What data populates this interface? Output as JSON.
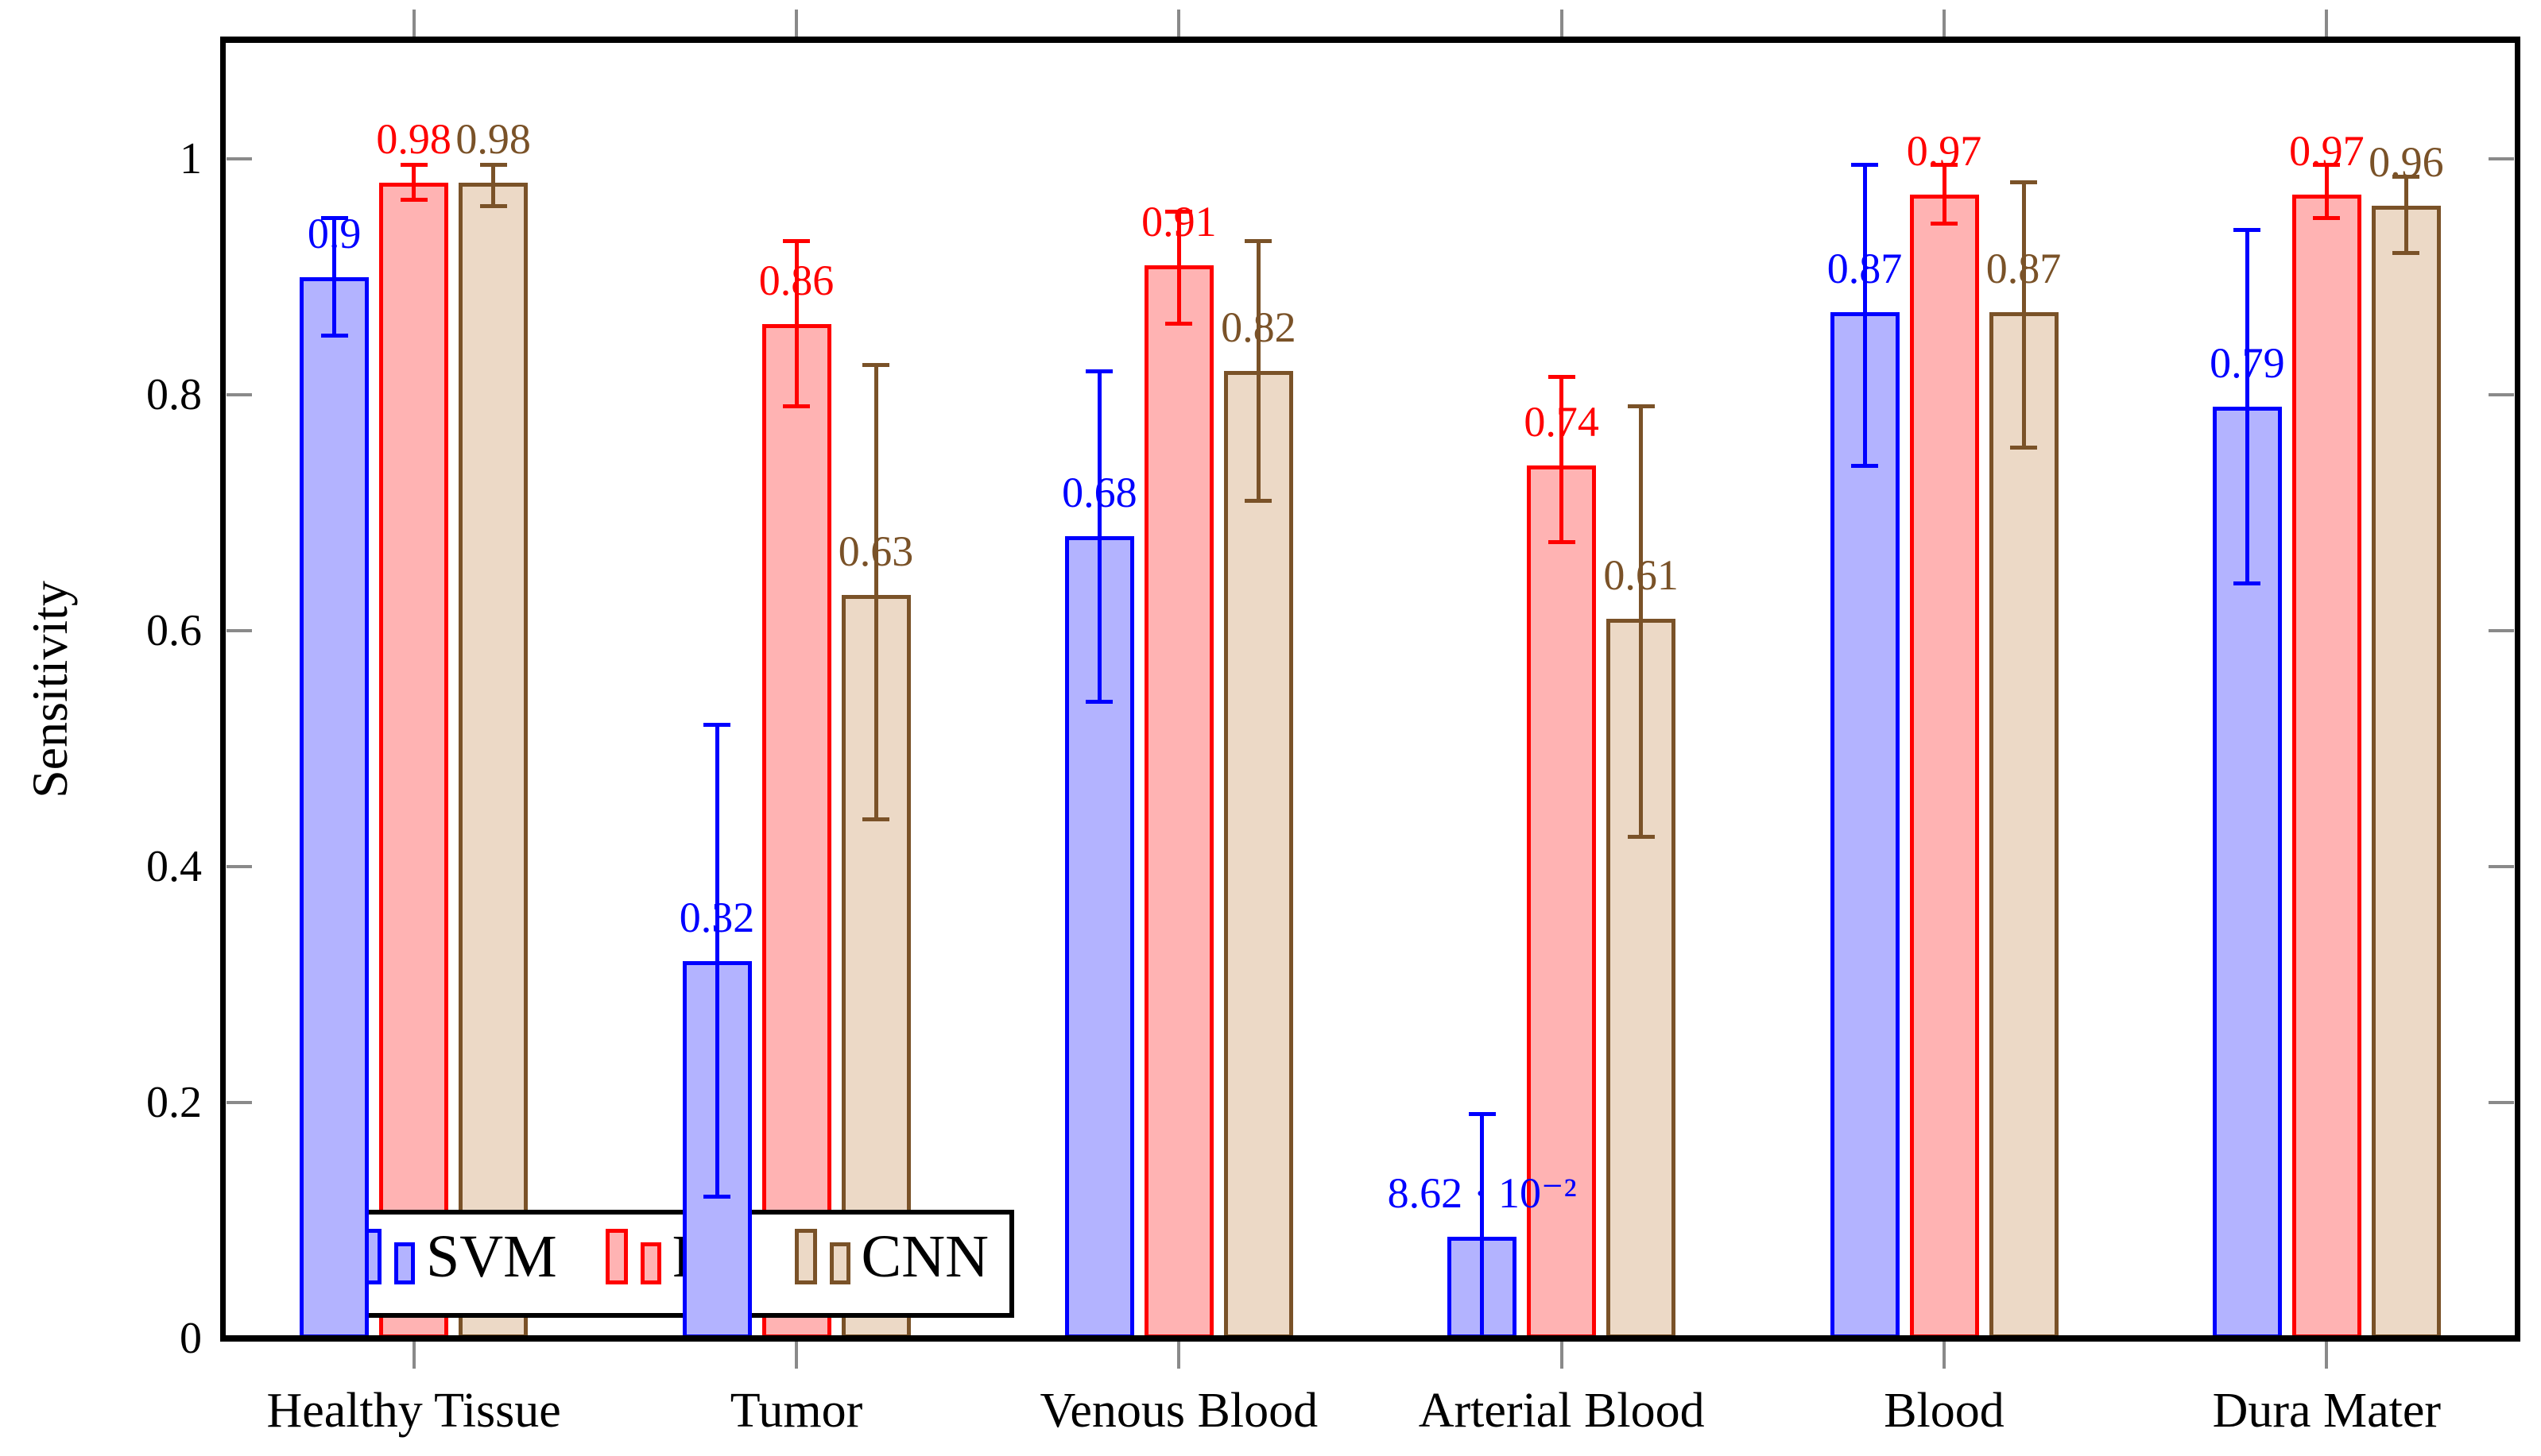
{
  "figure": {
    "ylabel": "Sensitivity",
    "background": "#ffffff"
  },
  "legend": {
    "position": "south west",
    "entries": [
      "SVM",
      "RF",
      "CNN"
    ]
  },
  "axis": {
    "yticks": [
      0,
      0.2,
      0.4,
      0.6,
      0.8,
      1
    ],
    "ytick_labels": [
      "0",
      "0.2",
      "0.4",
      "0.6",
      "0.8",
      "1"
    ],
    "ymax_display": 1.1,
    "tick_color": "#8a8a8a",
    "axis_color": "#000000"
  },
  "chart_data": {
    "type": "bar",
    "title": "",
    "xlabel": "",
    "ylabel": "Sensitivity",
    "ylim": [
      0,
      1.1
    ],
    "grid": false,
    "legend_position": "south west",
    "categories": [
      "Healthy Tissue",
      "Tumor",
      "Venous Blood",
      "Arterial Blood",
      "Blood",
      "Dura Mater"
    ],
    "series": [
      {
        "name": "SVM",
        "border_color": "#0000ff",
        "fill_color": "#b3b3ff",
        "values": [
          0.9,
          0.32,
          0.68,
          0.0862,
          0.87,
          0.79
        ],
        "value_labels": [
          "0.9",
          "0.32",
          "0.68",
          "8.62 · 10⁻²",
          "0.87",
          "0.79"
        ],
        "error_low": [
          0.85,
          0.12,
          0.54,
          0.0,
          0.74,
          0.64
        ],
        "error_high": [
          0.95,
          0.52,
          0.82,
          0.19,
          0.995,
          0.94
        ]
      },
      {
        "name": "RF",
        "border_color": "#ff0000",
        "fill_color": "#ffb3b3",
        "values": [
          0.98,
          0.86,
          0.91,
          0.74,
          0.97,
          0.97
        ],
        "value_labels": [
          "0.98",
          "0.86",
          "0.91",
          "0.74",
          "0.97",
          "0.97"
        ],
        "error_low": [
          0.965,
          0.79,
          0.86,
          0.675,
          0.945,
          0.95
        ],
        "error_high": [
          0.995,
          0.93,
          0.955,
          0.815,
          0.995,
          0.995
        ]
      },
      {
        "name": "CNN",
        "border_color": "#7a5228",
        "fill_color": "#ecd9c6",
        "values": [
          0.98,
          0.63,
          0.82,
          0.61,
          0.87,
          0.96
        ],
        "value_labels": [
          "0.98",
          "0.63",
          "0.82",
          "0.61",
          "0.87",
          "0.96"
        ],
        "error_low": [
          0.96,
          0.44,
          0.71,
          0.425,
          0.755,
          0.92
        ],
        "error_high": [
          0.995,
          0.825,
          0.93,
          0.79,
          0.98,
          0.985
        ]
      }
    ]
  }
}
